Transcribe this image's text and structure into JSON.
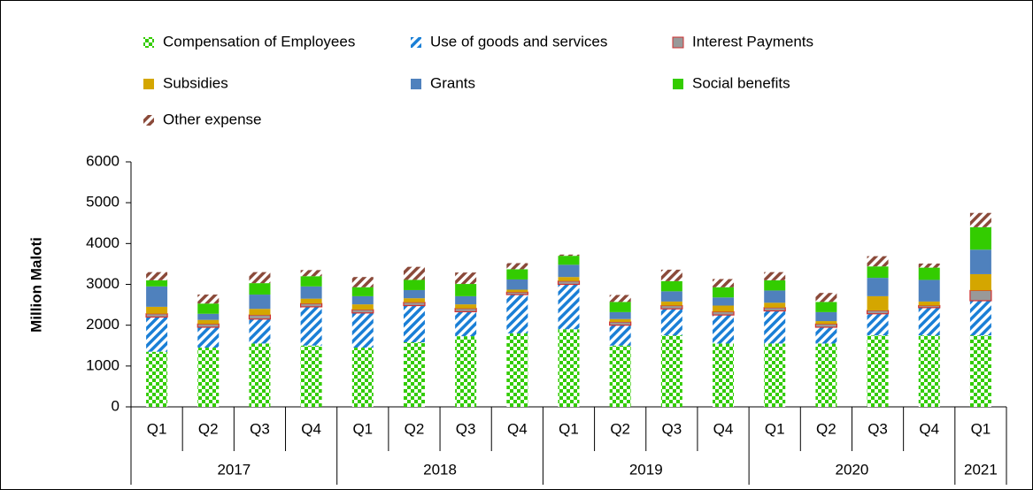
{
  "chart_data": {
    "type": "stacked_bar",
    "y_label": "Million Maloti",
    "ylim": [
      0,
      6000
    ],
    "yticks": [
      0,
      1000,
      2000,
      3000,
      4000,
      5000,
      6000
    ],
    "category_groups": [
      {
        "name": "2017",
        "categories": [
          "Q1",
          "Q2",
          "Q3",
          "Q4"
        ]
      },
      {
        "name": "2018",
        "categories": [
          "Q1",
          "Q2",
          "Q3",
          "Q4"
        ]
      },
      {
        "name": "2019",
        "categories": [
          "Q1",
          "Q2",
          "Q3",
          "Q4"
        ]
      },
      {
        "name": "2020",
        "categories": [
          "Q1",
          "Q2",
          "Q3",
          "Q4"
        ]
      },
      {
        "name": "2021",
        "categories": [
          "Q1"
        ]
      }
    ],
    "series": [
      {
        "name": "Compensation of Employees",
        "color": "#33cc00",
        "pattern": "checker",
        "values": [
          1350,
          1450,
          1550,
          1500,
          1450,
          1580,
          1730,
          1800,
          1900,
          1500,
          1750,
          1550,
          1550,
          1550,
          1750,
          1750,
          1750
        ]
      },
      {
        "name": "Use of goods and services",
        "color": "#1a7fd6",
        "pattern": "stripes",
        "values": [
          850,
          500,
          600,
          950,
          850,
          900,
          600,
          950,
          1100,
          500,
          650,
          700,
          800,
          400,
          530,
          680,
          850
        ]
      },
      {
        "name": "Interest Payments",
        "color": "#999999",
        "border": "#d03030",
        "pattern": "solid",
        "values": [
          80,
          80,
          100,
          80,
          80,
          80,
          80,
          60,
          80,
          80,
          80,
          80,
          80,
          80,
          80,
          50,
          250
        ]
      },
      {
        "name": "Subsidies",
        "color": "#d4a600",
        "pattern": "solid",
        "values": [
          170,
          100,
          150,
          120,
          130,
          100,
          100,
          60,
          100,
          70,
          100,
          150,
          120,
          70,
          350,
          100,
          400
        ]
      },
      {
        "name": "Grants",
        "color": "#4f81bd",
        "pattern": "solid",
        "values": [
          500,
          150,
          350,
          300,
          200,
          200,
          200,
          250,
          300,
          170,
          250,
          200,
          300,
          220,
          450,
          530,
          600
        ]
      },
      {
        "name": "Social benefits",
        "color": "#33cc00",
        "pattern": "solid",
        "values": [
          150,
          250,
          280,
          250,
          220,
          250,
          300,
          250,
          220,
          250,
          250,
          250,
          250,
          250,
          280,
          300,
          550
        ]
      },
      {
        "name": "Other expense",
        "color": "#8b4a3a",
        "pattern": "stripes",
        "values": [
          200,
          220,
          270,
          150,
          250,
          320,
          280,
          150,
          30,
          170,
          280,
          200,
          200,
          220,
          250,
          100,
          350
        ]
      }
    ]
  }
}
